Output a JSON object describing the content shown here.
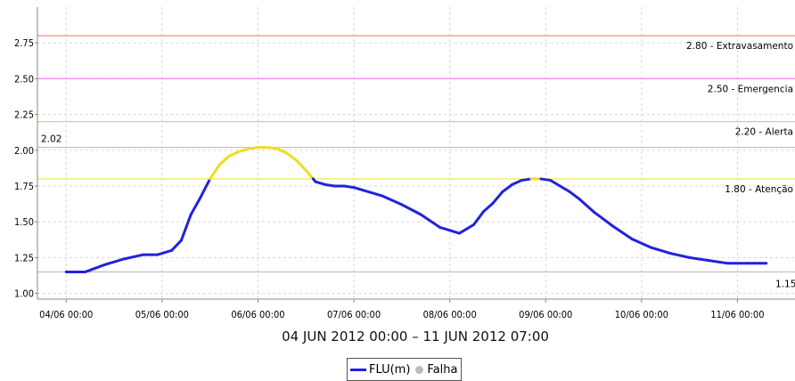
{
  "chart_data": {
    "type": "line",
    "xlabel": "04 JUN 2012 00:00 – 11 JUN 2012 07:00",
    "ylim": [
      0.96,
      3.0
    ],
    "yticks": [
      1.0,
      1.25,
      1.5,
      1.75,
      2.0,
      2.25,
      2.5,
      2.75
    ],
    "ytick_labels": [
      "1.00",
      "1.25",
      "1.50",
      "1.75",
      "2.00",
      "2.25",
      "2.50",
      "2.75"
    ],
    "xlim": [
      -0.3,
      7.6
    ],
    "xticks": [
      0,
      1,
      2,
      3,
      4,
      5,
      6,
      7
    ],
    "xtick_labels": [
      "04/06 00:00",
      "05/06 00:00",
      "06/06 00:00",
      "07/06 00:00",
      "08/06 00:00",
      "09/06 00:00",
      "10/06 00:00",
      "11/06 00:00"
    ],
    "grid": true,
    "legend": {
      "placement": "bottom-center",
      "series_label": "FLU(m)",
      "fail_label": "Falha"
    },
    "thresholds": [
      {
        "value": 2.8,
        "label": "2.80 - Extravasamento",
        "color": "#ff8888"
      },
      {
        "value": 2.5,
        "label": "2.50 - Emergencia",
        "color": "#ee88ee"
      },
      {
        "value": 2.2,
        "label": "2.20 - Alerta",
        "color": "#f0c080"
      },
      {
        "value": 1.8,
        "label": "1.80 - Atenção",
        "color": "#eeee66"
      }
    ],
    "extremes": [
      {
        "value": 2.02,
        "label": "2.02",
        "side": "left"
      },
      {
        "value": 1.15,
        "label": "1.15",
        "side": "right"
      }
    ],
    "series": [
      {
        "name": "FLU(m)",
        "color": "#2222dd",
        "alert_color": "#eedd22",
        "alert_threshold": 1.8,
        "x": [
          0.0,
          0.2,
          0.4,
          0.6,
          0.8,
          0.95,
          1.1,
          1.2,
          1.3,
          1.4,
          1.5,
          1.6,
          1.7,
          1.8,
          1.9,
          2.0,
          2.1,
          2.2,
          2.3,
          2.4,
          2.5,
          2.6,
          2.7,
          2.8,
          2.9,
          3.0,
          3.1,
          3.3,
          3.5,
          3.7,
          3.9,
          4.1,
          4.25,
          4.35,
          4.45,
          4.55,
          4.65,
          4.75,
          4.85,
          4.95,
          5.05,
          5.15,
          5.25,
          5.35,
          5.5,
          5.7,
          5.9,
          6.1,
          6.3,
          6.5,
          6.7,
          6.9,
          7.1,
          7.3
        ],
        "y": [
          1.15,
          1.15,
          1.2,
          1.24,
          1.27,
          1.27,
          1.3,
          1.37,
          1.55,
          1.67,
          1.8,
          1.9,
          1.96,
          1.99,
          2.01,
          2.02,
          2.02,
          2.01,
          1.98,
          1.93,
          1.86,
          1.78,
          1.76,
          1.75,
          1.75,
          1.74,
          1.72,
          1.68,
          1.62,
          1.55,
          1.46,
          1.42,
          1.48,
          1.57,
          1.63,
          1.71,
          1.76,
          1.79,
          1.8,
          1.8,
          1.79,
          1.75,
          1.71,
          1.66,
          1.57,
          1.47,
          1.38,
          1.32,
          1.28,
          1.25,
          1.23,
          1.21,
          1.21,
          1.21
        ]
      }
    ]
  }
}
